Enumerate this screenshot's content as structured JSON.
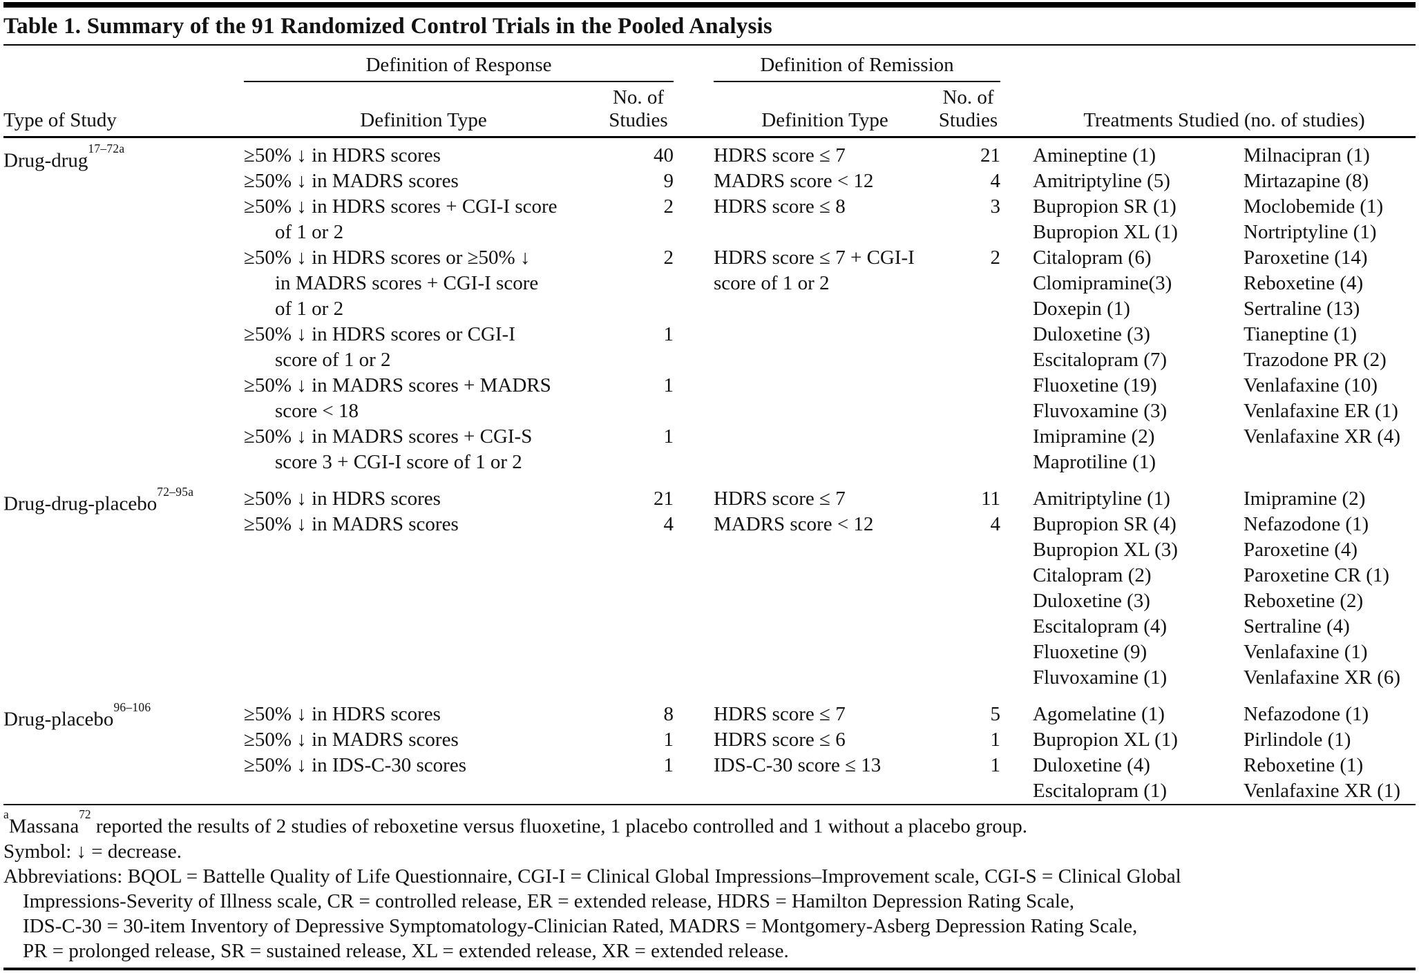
{
  "title": "Table 1. Summary of the 91 Randomized Control Trials in the Pooled Analysis",
  "header": {
    "group_response": "Definition of Response",
    "group_remission": "Definition of Remission",
    "col_type_of_study": "Type of Study",
    "col_definition_type_response": "Definition Type",
    "col_definition_type_remission": "Definition Type",
    "col_no_of_studies_line1": "No. of",
    "col_no_of_studies_line2": "Studies",
    "col_treatments": "Treatments Studied (no. of studies)"
  },
  "sections": [
    {
      "study_type": "Drug-drug",
      "study_refs": "17–72a",
      "response": [
        {
          "text": "≥50% ↓ in HDRS scores",
          "indent": false,
          "n": "40"
        },
        {
          "text": "≥50% ↓ in MADRS scores",
          "indent": false,
          "n": "9"
        },
        {
          "text": "≥50% ↓ in HDRS scores + CGI-I score",
          "indent": false,
          "n": "2"
        },
        {
          "text": "of 1 or 2",
          "indent": true,
          "n": ""
        },
        {
          "text": "≥50% ↓ in HDRS scores or ≥50% ↓",
          "indent": false,
          "n": "2"
        },
        {
          "text": "in MADRS scores + CGI-I score",
          "indent": true,
          "n": ""
        },
        {
          "text": "of 1 or 2",
          "indent": true,
          "n": ""
        },
        {
          "text": "≥50% ↓ in HDRS scores or CGI-I",
          "indent": false,
          "n": "1"
        },
        {
          "text": "score of 1 or 2",
          "indent": true,
          "n": ""
        },
        {
          "text": "≥50% ↓ in MADRS scores + MADRS",
          "indent": false,
          "n": "1"
        },
        {
          "text": "score < 18",
          "indent": true,
          "n": ""
        },
        {
          "text": "≥50% ↓ in MADRS scores + CGI-S",
          "indent": false,
          "n": "1"
        },
        {
          "text": "score 3 + CGI-I score of 1 or 2",
          "indent": true,
          "n": ""
        }
      ],
      "remission": [
        {
          "text": "HDRS score ≤ 7",
          "indent": false,
          "n": "21"
        },
        {
          "text": "MADRS score < 12",
          "indent": false,
          "n": "4"
        },
        {
          "text": "HDRS score ≤ 8",
          "indent": false,
          "n": "3"
        },
        {
          "text": "",
          "indent": false,
          "n": ""
        },
        {
          "text": "HDRS score ≤ 7 + CGI-I",
          "indent": false,
          "n": "2"
        },
        {
          "text": "score of 1 or 2",
          "indent": false,
          "n": ""
        }
      ],
      "treatments_col1": [
        "Amineptine (1)",
        "Amitriptyline (5)",
        "Bupropion SR (1)",
        "Bupropion XL (1)",
        "Citalopram (6)",
        "Clomipramine(3)",
        "Doxepin (1)",
        "Duloxetine (3)",
        "Escitalopram (7)",
        "Fluoxetine (19)",
        "Fluvoxamine (3)",
        "Imipramine (2)",
        "Maprotiline (1)"
      ],
      "treatments_col2": [
        "Milnacipran (1)",
        "Mirtazapine (8)",
        "Moclobemide (1)",
        "Nortriptyline (1)",
        "Paroxetine (14)",
        "Reboxetine (4)",
        "Sertraline (13)",
        "Tianeptine (1)",
        "Trazodone PR (2)",
        "Venlafaxine (10)",
        "Venlafaxine ER (1)",
        "Venlafaxine XR (4)"
      ]
    },
    {
      "study_type": "Drug-drug-placebo",
      "study_refs": "72–95a",
      "response": [
        {
          "text": "≥50% ↓ in HDRS scores",
          "indent": false,
          "n": "21"
        },
        {
          "text": "≥50% ↓ in MADRS scores",
          "indent": false,
          "n": "4"
        }
      ],
      "remission": [
        {
          "text": "HDRS score ≤ 7",
          "indent": false,
          "n": "11"
        },
        {
          "text": "MADRS score < 12",
          "indent": false,
          "n": "4"
        }
      ],
      "treatments_col1": [
        "Amitriptyline (1)",
        "Bupropion SR (4)",
        "Bupropion XL (3)",
        "Citalopram (2)",
        "Duloxetine (3)",
        "Escitalopram (4)",
        "Fluoxetine (9)",
        "Fluvoxamine (1)"
      ],
      "treatments_col2": [
        "Imipramine (2)",
        "Nefazodone (1)",
        "Paroxetine (4)",
        "Paroxetine CR (1)",
        "Reboxetine (2)",
        "Sertraline (4)",
        "Venlafaxine (1)",
        "Venlafaxine XR (6)"
      ]
    },
    {
      "study_type": "Drug-placebo",
      "study_refs": "96–106",
      "response": [
        {
          "text": "≥50% ↓ in HDRS scores",
          "indent": false,
          "n": "8"
        },
        {
          "text": "≥50% ↓ in MADRS scores",
          "indent": false,
          "n": "1"
        },
        {
          "text": "≥50% ↓ in IDS-C-30 scores",
          "indent": false,
          "n": "1"
        }
      ],
      "remission": [
        {
          "text": "HDRS score ≤ 7",
          "indent": false,
          "n": "5"
        },
        {
          "text": "HDRS score ≤ 6",
          "indent": false,
          "n": "1"
        },
        {
          "text": "IDS-C-30 score ≤ 13",
          "indent": false,
          "n": "1"
        }
      ],
      "treatments_col1": [
        "Agomelatine (1)",
        "Bupropion XL (1)",
        "Duloxetine (4)",
        "Escitalopram (1)"
      ],
      "treatments_col2": [
        "Nefazodone (1)",
        "Pirlindole (1)",
        "Reboxetine (1)",
        "Venlafaxine XR (1)"
      ]
    }
  ],
  "footnotes": {
    "massana": {
      "marker": "a",
      "name": "Massana",
      "ref": "72",
      "rest": " reported the results of 2 studies of reboxetine versus fluoxetine, 1 placebo controlled and 1 without a placebo group."
    },
    "symbol": "Symbol: ↓ = decrease.",
    "abbreviations": [
      "Abbreviations: BQOL = Battelle Quality of Life Questionnaire, CGI-I = Clinical Global Impressions–Improvement scale, CGI-S = Clinical Global",
      "Impressions-Severity of Illness scale, CR = controlled release, ER = extended release, HDRS = Hamilton Depression Rating Scale,",
      "IDS-C-30 = 30-item Inventory of Depressive Symptomatology-Clinician Rated, MADRS = Montgomery-Asberg Depression Rating Scale,",
      "PR = prolonged release, SR = sustained release, XL = extended release, XR = extended release."
    ]
  },
  "colors": {
    "text": "#121212",
    "rule": "#000000",
    "background": "#ffffff"
  }
}
